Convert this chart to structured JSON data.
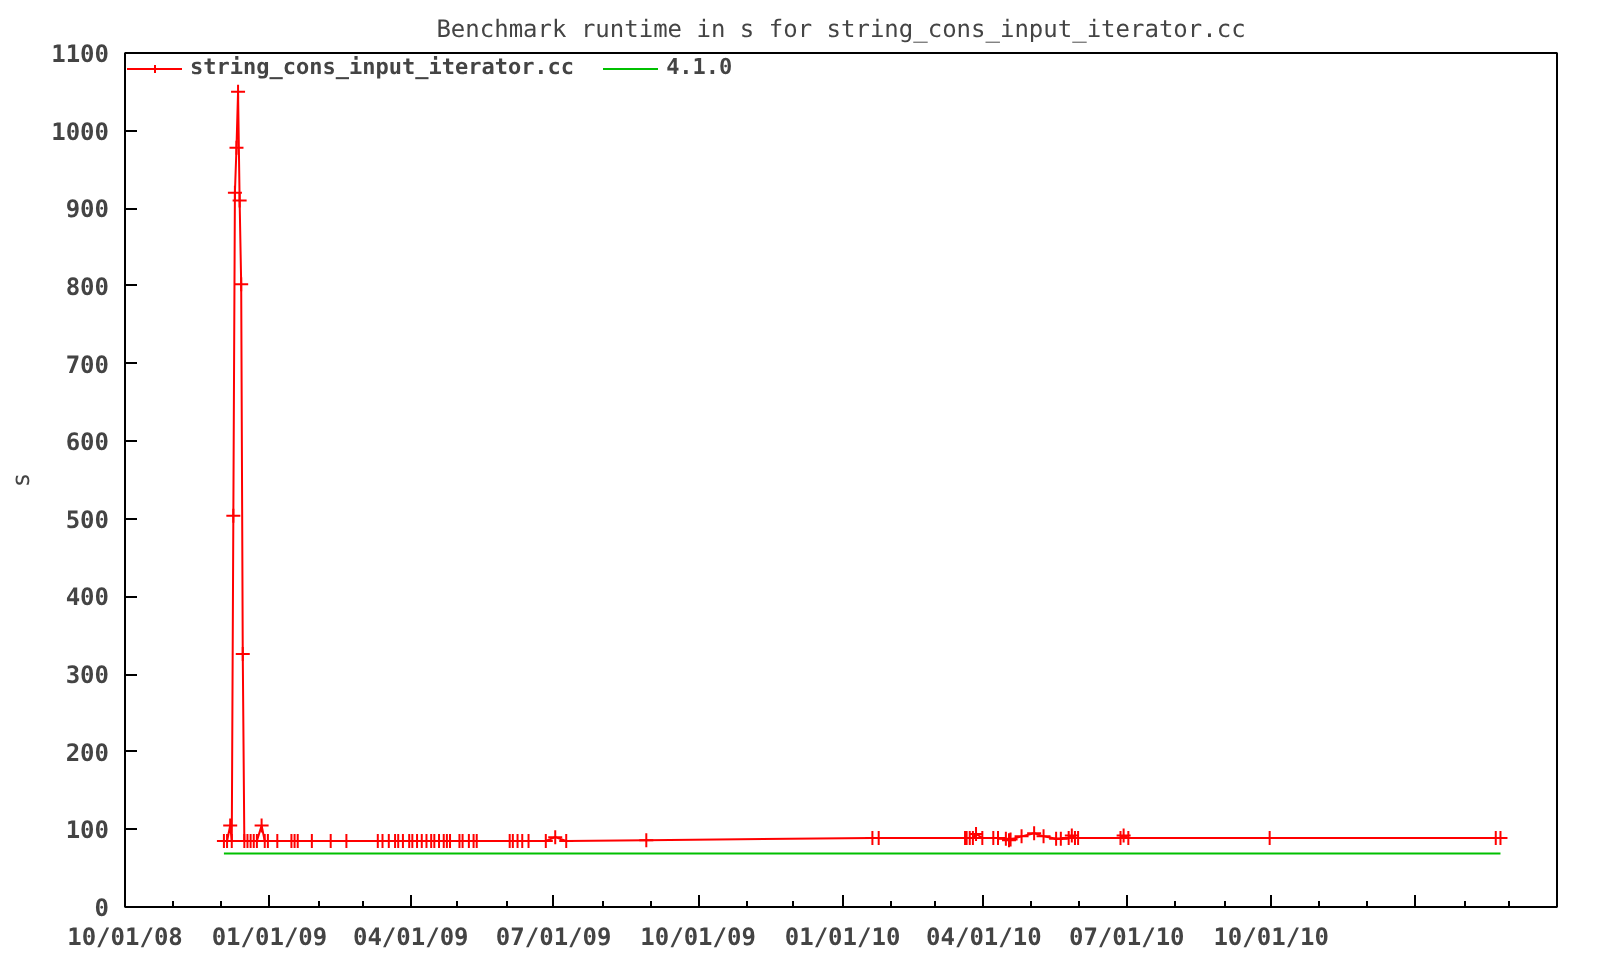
{
  "chart_data": {
    "type": "line",
    "title": "Benchmark runtime in s for string_cons_input_iterator.cc",
    "ylabel": "s",
    "xlim": [
      "2008-10-01",
      "2011-04-01"
    ],
    "xticks": [
      {
        "value": "2008-10-01",
        "label": "10/01/08"
      },
      {
        "value": "2009-01-01",
        "label": "01/01/09"
      },
      {
        "value": "2009-04-01",
        "label": "04/01/09"
      },
      {
        "value": "2009-07-01",
        "label": "07/01/09"
      },
      {
        "value": "2009-10-01",
        "label": "10/01/09"
      },
      {
        "value": "2010-01-01",
        "label": "01/01/10"
      },
      {
        "value": "2010-04-01",
        "label": "04/01/10"
      },
      {
        "value": "2010-07-01",
        "label": "07/01/10"
      },
      {
        "value": "2010-10-01",
        "label": "10/01/10"
      },
      {
        "value": "2011-01-01",
        "label": null
      },
      {
        "value": "2011-04-01",
        "label": null
      }
    ],
    "ylim": [
      0,
      1100
    ],
    "yticks": [
      0,
      100,
      200,
      300,
      400,
      500,
      600,
      700,
      800,
      900,
      1000,
      1100
    ],
    "legend": "top left",
    "series": [
      {
        "name": "string_cons_input_iterator.cc",
        "color": "#ff0000",
        "marker": "cross",
        "x": [
          "2008-12-03",
          "2008-12-05",
          "2008-12-07",
          "2008-12-08",
          "2008-12-09",
          "2008-12-10",
          "2008-12-11",
          "2008-12-12",
          "2008-12-13",
          "2008-12-14",
          "2008-12-15",
          "2008-12-16",
          "2008-12-18",
          "2008-12-20",
          "2008-12-22",
          "2008-12-24",
          "2008-12-27",
          "2008-12-29",
          "2008-12-31",
          "2009-01-06",
          "2009-01-15",
          "2009-01-17",
          "2009-01-19",
          "2009-01-28",
          "2009-02-09",
          "2009-02-19",
          "2009-03-11",
          "2009-03-14",
          "2009-03-18",
          "2009-03-22",
          "2009-03-24",
          "2009-03-27",
          "2009-03-31",
          "2009-04-02",
          "2009-04-05",
          "2009-04-08",
          "2009-04-11",
          "2009-04-14",
          "2009-04-16",
          "2009-04-19",
          "2009-04-22",
          "2009-04-24",
          "2009-04-26",
          "2009-05-02",
          "2009-05-04",
          "2009-05-08",
          "2009-05-11",
          "2009-05-13",
          "2009-06-03",
          "2009-06-05",
          "2009-06-08",
          "2009-06-11",
          "2009-06-15",
          "2009-06-26",
          "2009-07-02",
          "2009-07-09",
          "2009-08-29",
          "2010-01-20",
          "2010-01-24",
          "2010-03-20",
          "2010-03-21",
          "2010-03-23",
          "2010-03-25",
          "2010-03-27",
          "2010-03-31",
          "2010-04-07",
          "2010-04-10",
          "2010-04-15",
          "2010-04-17",
          "2010-04-18",
          "2010-04-25",
          "2010-05-03",
          "2010-05-09",
          "2010-05-17",
          "2010-05-20",
          "2010-05-25",
          "2010-05-27",
          "2010-05-29",
          "2010-05-31",
          "2010-06-27",
          "2010-06-29",
          "2010-07-02",
          "2010-09-30",
          "2011-02-21",
          "2011-02-24"
        ],
        "values": [
          85,
          85,
          105,
          85,
          504,
          920,
          978,
          1050,
          910,
          802,
          326,
          85,
          85,
          85,
          85,
          85,
          105,
          85,
          85,
          85,
          85,
          85,
          85,
          85,
          85,
          85,
          85,
          85,
          85,
          85,
          85,
          85,
          85,
          85,
          85,
          85,
          85,
          85,
          85,
          85,
          85,
          85,
          85,
          85,
          85,
          85,
          85,
          85,
          85,
          85,
          85,
          85,
          85,
          85,
          90,
          85,
          86,
          89,
          89,
          89,
          89,
          89,
          89,
          94,
          89,
          89,
          89,
          88,
          86,
          87,
          91,
          95,
          91,
          88,
          88,
          89,
          92,
          89,
          89,
          89,
          92,
          89,
          89,
          89,
          89
        ]
      },
      {
        "name": "4.1.0",
        "color": "#00c000",
        "marker": "none",
        "x": [
          "2008-12-03",
          "2011-02-24"
        ],
        "values": [
          69,
          69
        ]
      }
    ]
  }
}
